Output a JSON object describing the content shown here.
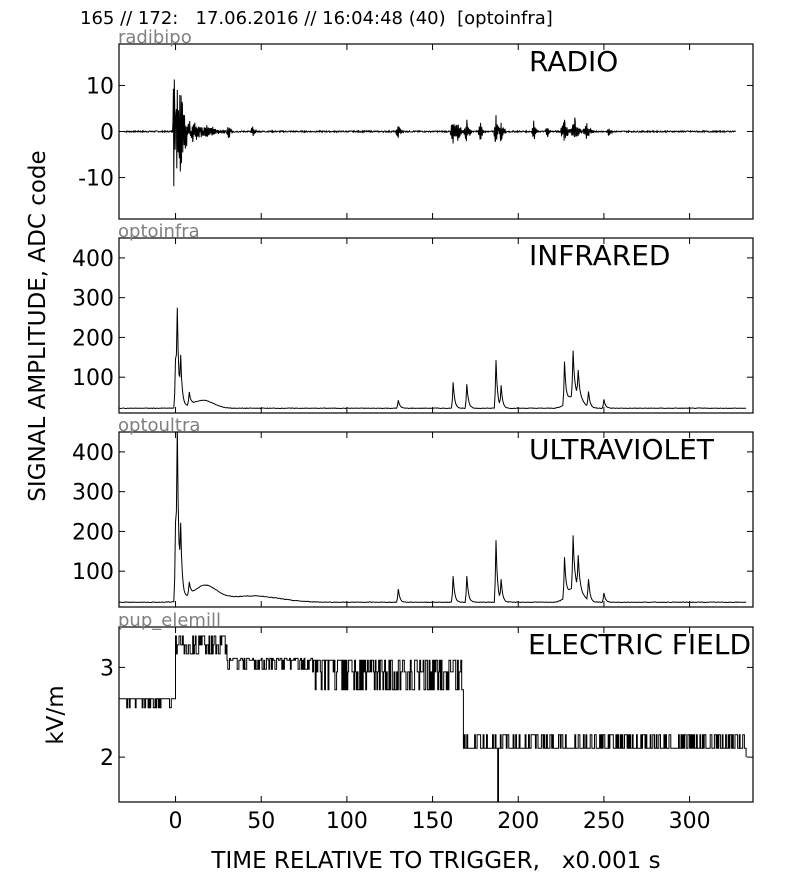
{
  "header": "165 // 172:   17.06.2016 // 16:04:48 (40)  [optoinfra]",
  "ylabel_main": "SIGNAL AMPLITUDE,  ADC code",
  "ylabel_field": "kV/m",
  "xlabel": "TIME RELATIVE TO TRIGGER,   x0.001 s",
  "colors": {
    "line": "#000000",
    "channel_label": "#808080",
    "frame": "#000000"
  },
  "chart_data": [
    {
      "type": "line",
      "channel": "radibipo",
      "title": "RADIO",
      "ylim": [
        -19,
        19
      ],
      "yticks": [
        -10,
        0,
        10
      ],
      "xlim": [
        -33,
        337
      ],
      "xticks": [
        0,
        50,
        100,
        150,
        200,
        250,
        300
      ],
      "baseline": 0,
      "noise": 0.3,
      "end": 327,
      "events": [
        {
          "x": -1,
          "y": 18,
          "kind": "osc",
          "w": 0.5
        },
        {
          "x": -0.5,
          "y": -14,
          "kind": "osc",
          "w": 0.5
        },
        {
          "x": 1,
          "y": 10,
          "kind": "osc",
          "w": 1.5
        },
        {
          "x": 3,
          "y": -6,
          "kind": "osc",
          "w": 2
        },
        {
          "x": 5,
          "y": 4,
          "kind": "osc",
          "w": 3
        },
        {
          "x": 10,
          "y": 2,
          "kind": "osc",
          "w": 6
        },
        {
          "x": 18,
          "y": 1.2,
          "kind": "osc",
          "w": 8
        },
        {
          "x": 31,
          "y": 2.5,
          "kind": "osc",
          "w": 1
        },
        {
          "x": 45,
          "y": 1.5,
          "kind": "osc",
          "w": 1
        },
        {
          "x": 130,
          "y": 1.5,
          "kind": "osc",
          "w": 1.5
        },
        {
          "x": 162,
          "y": 3,
          "kind": "osc",
          "w": 1.5
        },
        {
          "x": 165,
          "y": 2.5,
          "kind": "osc",
          "w": 1.5
        },
        {
          "x": 170,
          "y": 3,
          "kind": "osc",
          "w": 1.5
        },
        {
          "x": 178,
          "y": 2,
          "kind": "osc",
          "w": 1.5
        },
        {
          "x": 187,
          "y": -4,
          "kind": "osc",
          "w": 1
        },
        {
          "x": 190,
          "y": 2.5,
          "kind": "osc",
          "w": 1.5
        },
        {
          "x": 209,
          "y": 3,
          "kind": "osc",
          "w": 1
        },
        {
          "x": 217,
          "y": 1.5,
          "kind": "osc",
          "w": 1
        },
        {
          "x": 227,
          "y": 3,
          "kind": "osc",
          "w": 2
        },
        {
          "x": 233,
          "y": 3,
          "kind": "osc",
          "w": 2
        },
        {
          "x": 240,
          "y": 2,
          "kind": "osc",
          "w": 2
        },
        {
          "x": 253,
          "y": 1.2,
          "kind": "osc",
          "w": 1
        }
      ]
    },
    {
      "type": "line",
      "channel": "optoinfra",
      "title": "INFRARED",
      "ylim": [
        10,
        450
      ],
      "yticks": [
        100,
        200,
        300,
        400
      ],
      "xlim": [
        -33,
        337
      ],
      "xticks": [
        0,
        50,
        100,
        150,
        200,
        250,
        300
      ],
      "baseline": 22,
      "noise": 1.5,
      "end": 333,
      "events": [
        {
          "x": 0,
          "y": 145,
          "kind": "spike"
        },
        {
          "x": 1,
          "y": 233,
          "kind": "spike"
        },
        {
          "x": 3,
          "y": 127,
          "kind": "spike"
        },
        {
          "x": 8,
          "y": 55,
          "kind": "spike"
        },
        {
          "x": 16,
          "y": 42,
          "kind": "hump",
          "w": 6
        },
        {
          "x": 130,
          "y": 42,
          "kind": "spike"
        },
        {
          "x": 162,
          "y": 88,
          "kind": "spike"
        },
        {
          "x": 170,
          "y": 82,
          "kind": "spike"
        },
        {
          "x": 187,
          "y": 143,
          "kind": "spike"
        },
        {
          "x": 190,
          "y": 75,
          "kind": "spike"
        },
        {
          "x": 227,
          "y": 128,
          "kind": "spike"
        },
        {
          "x": 232,
          "y": 135,
          "kind": "spike"
        },
        {
          "x": 235,
          "y": 85,
          "kind": "spike"
        },
        {
          "x": 233,
          "y": 55,
          "kind": "hump",
          "w": 4
        },
        {
          "x": 241,
          "y": 60,
          "kind": "spike"
        },
        {
          "x": 250,
          "y": 45,
          "kind": "spike"
        }
      ]
    },
    {
      "type": "line",
      "channel": "optoultra",
      "title": "ULTRAVIOLET",
      "ylim": [
        10,
        450
      ],
      "yticks": [
        100,
        200,
        300,
        400
      ],
      "xlim": [
        -33,
        337
      ],
      "xticks": [
        0,
        50,
        100,
        150,
        200,
        250,
        300
      ],
      "baseline": 22,
      "noise": 1.5,
      "end": 333,
      "events": [
        {
          "x": 0,
          "y": 220,
          "kind": "spike"
        },
        {
          "x": 1,
          "y": 397,
          "kind": "spike"
        },
        {
          "x": 3,
          "y": 168,
          "kind": "spike"
        },
        {
          "x": 8,
          "y": 55,
          "kind": "spike"
        },
        {
          "x": 17,
          "y": 62,
          "kind": "hump",
          "w": 7
        },
        {
          "x": 45,
          "y": 38,
          "kind": "hump",
          "w": 15
        },
        {
          "x": 130,
          "y": 55,
          "kind": "spike"
        },
        {
          "x": 162,
          "y": 88,
          "kind": "spike"
        },
        {
          "x": 170,
          "y": 88,
          "kind": "spike"
        },
        {
          "x": 187,
          "y": 178,
          "kind": "spike"
        },
        {
          "x": 190,
          "y": 75,
          "kind": "spike"
        },
        {
          "x": 227,
          "y": 123,
          "kind": "spike"
        },
        {
          "x": 232,
          "y": 153,
          "kind": "spike"
        },
        {
          "x": 235,
          "y": 102,
          "kind": "spike"
        },
        {
          "x": 233,
          "y": 60,
          "kind": "hump",
          "w": 4
        },
        {
          "x": 241,
          "y": 75,
          "kind": "spike"
        },
        {
          "x": 250,
          "y": 45,
          "kind": "spike"
        }
      ]
    },
    {
      "type": "line",
      "channel": "pup_elemill",
      "title": "ELECTRIC FIELD",
      "ylim": [
        1.5,
        3.45
      ],
      "yticks": [
        2,
        3
      ],
      "xlim": [
        -33,
        337
      ],
      "xticks": [
        0,
        50,
        100,
        150,
        200,
        250,
        300
      ],
      "end": 333,
      "levels": [
        {
          "from": -33,
          "to": 0,
          "base": 2.55,
          "low": 2.45,
          "high": 2.65
        },
        {
          "from": 0,
          "to": 30,
          "base": 3.25,
          "low": 3.15,
          "high": 3.35
        },
        {
          "from": 30,
          "to": 80,
          "base": 3.08,
          "low": 2.98,
          "high": 3.1
        },
        {
          "from": 80,
          "to": 168,
          "base": 2.95,
          "low": 2.75,
          "high": 3.08
        },
        {
          "from": 168,
          "to": 333,
          "base": 2.1,
          "low": 2.1,
          "high": 2.25
        }
      ],
      "dips": [
        {
          "x": 188,
          "y": 1.5
        }
      ]
    }
  ]
}
